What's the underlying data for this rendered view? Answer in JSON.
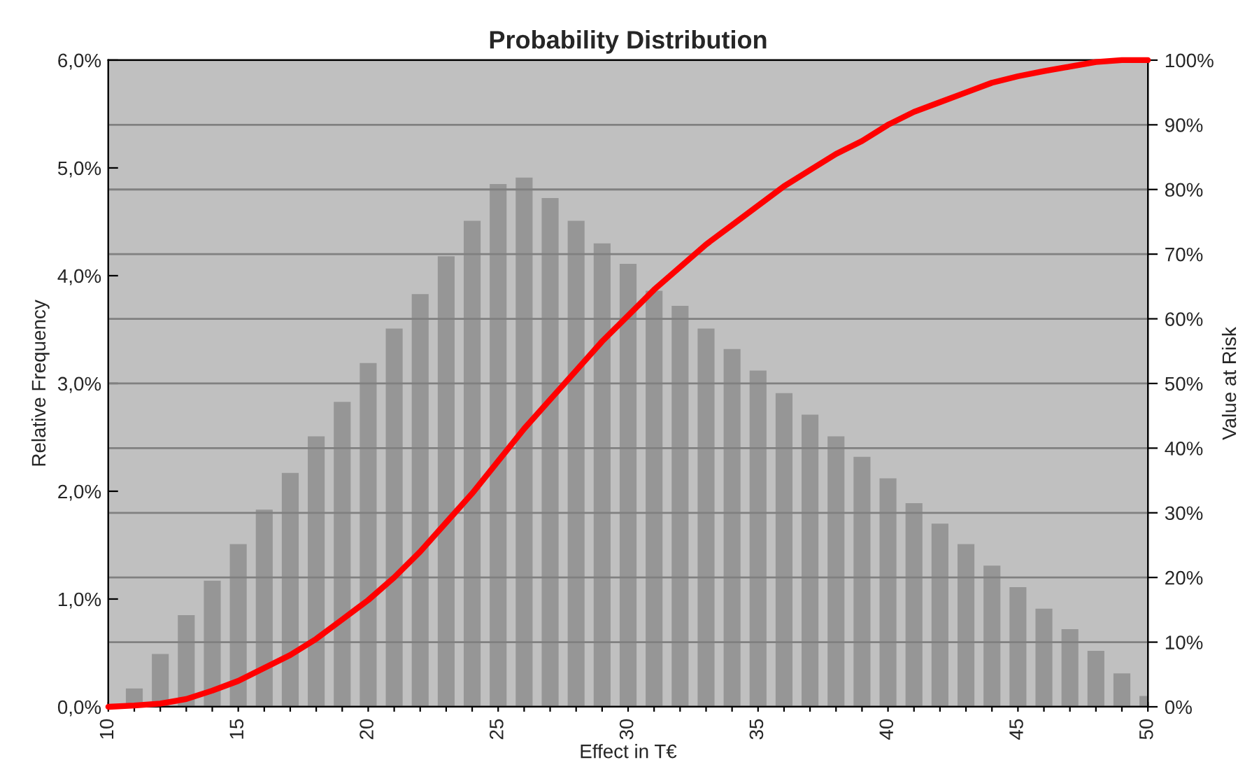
{
  "chart_data": {
    "type": "bar",
    "title": "Probability Distribution",
    "xlabel": "Effect in T€",
    "ylabel": "Relative Frequency",
    "y2label": "Value at Risk",
    "series": [
      {
        "color": "#969696",
        "x": [
          11,
          12,
          13,
          14,
          15,
          16,
          17,
          18,
          19,
          20,
          21,
          22,
          23,
          24,
          25,
          26,
          27,
          28,
          29,
          30,
          31,
          32,
          33,
          34,
          35,
          36,
          37,
          38,
          39,
          40,
          41,
          42,
          43,
          44,
          45,
          46,
          47,
          48,
          49,
          50
        ],
        "values": [
          0.17,
          0.49,
          0.85,
          1.17,
          1.51,
          1.83,
          2.17,
          2.51,
          2.83,
          3.19,
          3.51,
          3.83,
          4.18,
          4.51,
          4.85,
          4.91,
          4.72,
          4.51,
          4.3,
          4.11,
          3.86,
          3.72,
          3.51,
          3.32,
          3.12,
          2.91,
          2.71,
          2.51,
          2.32,
          2.12,
          1.89,
          1.7,
          1.51,
          1.31,
          1.11,
          0.91,
          0.72,
          0.52,
          0.31,
          0.1
        ]
      },
      {
        "type": "line",
        "axis": "y2",
        "color": "#ff0000",
        "x": [
          10,
          11,
          12,
          13,
          14,
          15,
          16,
          17,
          18,
          19,
          20,
          21,
          22,
          23,
          24,
          25,
          26,
          27,
          28,
          29,
          30,
          31,
          32,
          33,
          34,
          35,
          36,
          37,
          38,
          39,
          40,
          41,
          42,
          43,
          44,
          45,
          46,
          47,
          48,
          49,
          50
        ],
        "values": [
          0,
          0.2,
          0.5,
          1.2,
          2.5,
          4,
          6,
          8,
          10.5,
          13.5,
          16.5,
          20,
          24,
          28.5,
          33,
          38,
          43,
          47.5,
          52,
          56.5,
          60.5,
          64.5,
          68,
          71.5,
          74.5,
          77.5,
          80.5,
          83,
          85.5,
          87.5,
          90,
          92,
          93.5,
          95,
          96.5,
          97.5,
          98.3,
          99,
          99.7,
          100,
          100
        ]
      }
    ],
    "xlim": [
      10,
      50
    ],
    "xticks": [
      10,
      {
        "value": 11,
        "label": null
      },
      {
        "value": 12,
        "label": null
      },
      {
        "value": 13,
        "label": null
      },
      {
        "value": 14,
        "label": null
      },
      15,
      {
        "value": 16,
        "label": null
      },
      {
        "value": 17,
        "label": null
      },
      {
        "value": 18,
        "label": null
      },
      {
        "value": 19,
        "label": null
      },
      20,
      {
        "value": 21,
        "label": null
      },
      {
        "value": 22,
        "label": null
      },
      {
        "value": 23,
        "label": null
      },
      {
        "value": 24,
        "label": null
      },
      25,
      {
        "value": 26,
        "label": null
      },
      {
        "value": 27,
        "label": null
      },
      {
        "value": 28,
        "label": null
      },
      {
        "value": 29,
        "label": null
      },
      30,
      {
        "value": 31,
        "label": null
      },
      {
        "value": 32,
        "label": null
      },
      {
        "value": 33,
        "label": null
      },
      {
        "value": 34,
        "label": null
      },
      35,
      {
        "value": 36,
        "label": null
      },
      {
        "value": 37,
        "label": null
      },
      {
        "value": 38,
        "label": null
      },
      {
        "value": 39,
        "label": null
      },
      40,
      {
        "value": 41,
        "label": null
      },
      {
        "value": 42,
        "label": null
      },
      {
        "value": 43,
        "label": null
      },
      {
        "value": 44,
        "label": null
      },
      45,
      {
        "value": 46,
        "label": null
      },
      {
        "value": 47,
        "label": null
      },
      {
        "value": 48,
        "label": null
      },
      {
        "value": 49,
        "label": null
      },
      50
    ],
    "ylim": [
      0,
      6
    ],
    "yticks": [
      {
        "value": 0,
        "label": "0,0%"
      },
      {
        "value": 1,
        "label": "1,0%"
      },
      {
        "value": 2,
        "label": "2,0%"
      },
      {
        "value": 3,
        "label": "3,0%"
      },
      {
        "value": 4,
        "label": "4,0%"
      },
      {
        "value": 5,
        "label": "5,0%"
      },
      {
        "value": 6,
        "label": "6,0%"
      }
    ],
    "y2lim": [
      0,
      100
    ],
    "y2ticks": [
      {
        "value": 0,
        "label": "0%"
      },
      {
        "value": 10,
        "label": "10%"
      },
      {
        "value": 20,
        "label": "20%"
      },
      {
        "value": 30,
        "label": "30%"
      },
      {
        "value": 40,
        "label": "40%"
      },
      {
        "value": 50,
        "label": "50%"
      },
      {
        "value": 60,
        "label": "60%"
      },
      {
        "value": 70,
        "label": "70%"
      },
      {
        "value": 80,
        "label": "80%"
      },
      {
        "value": 90,
        "label": "90%"
      },
      {
        "value": 100,
        "label": "100%"
      }
    ],
    "grid": "y",
    "legend": false,
    "marker": "none",
    "line_style": "solid"
  }
}
